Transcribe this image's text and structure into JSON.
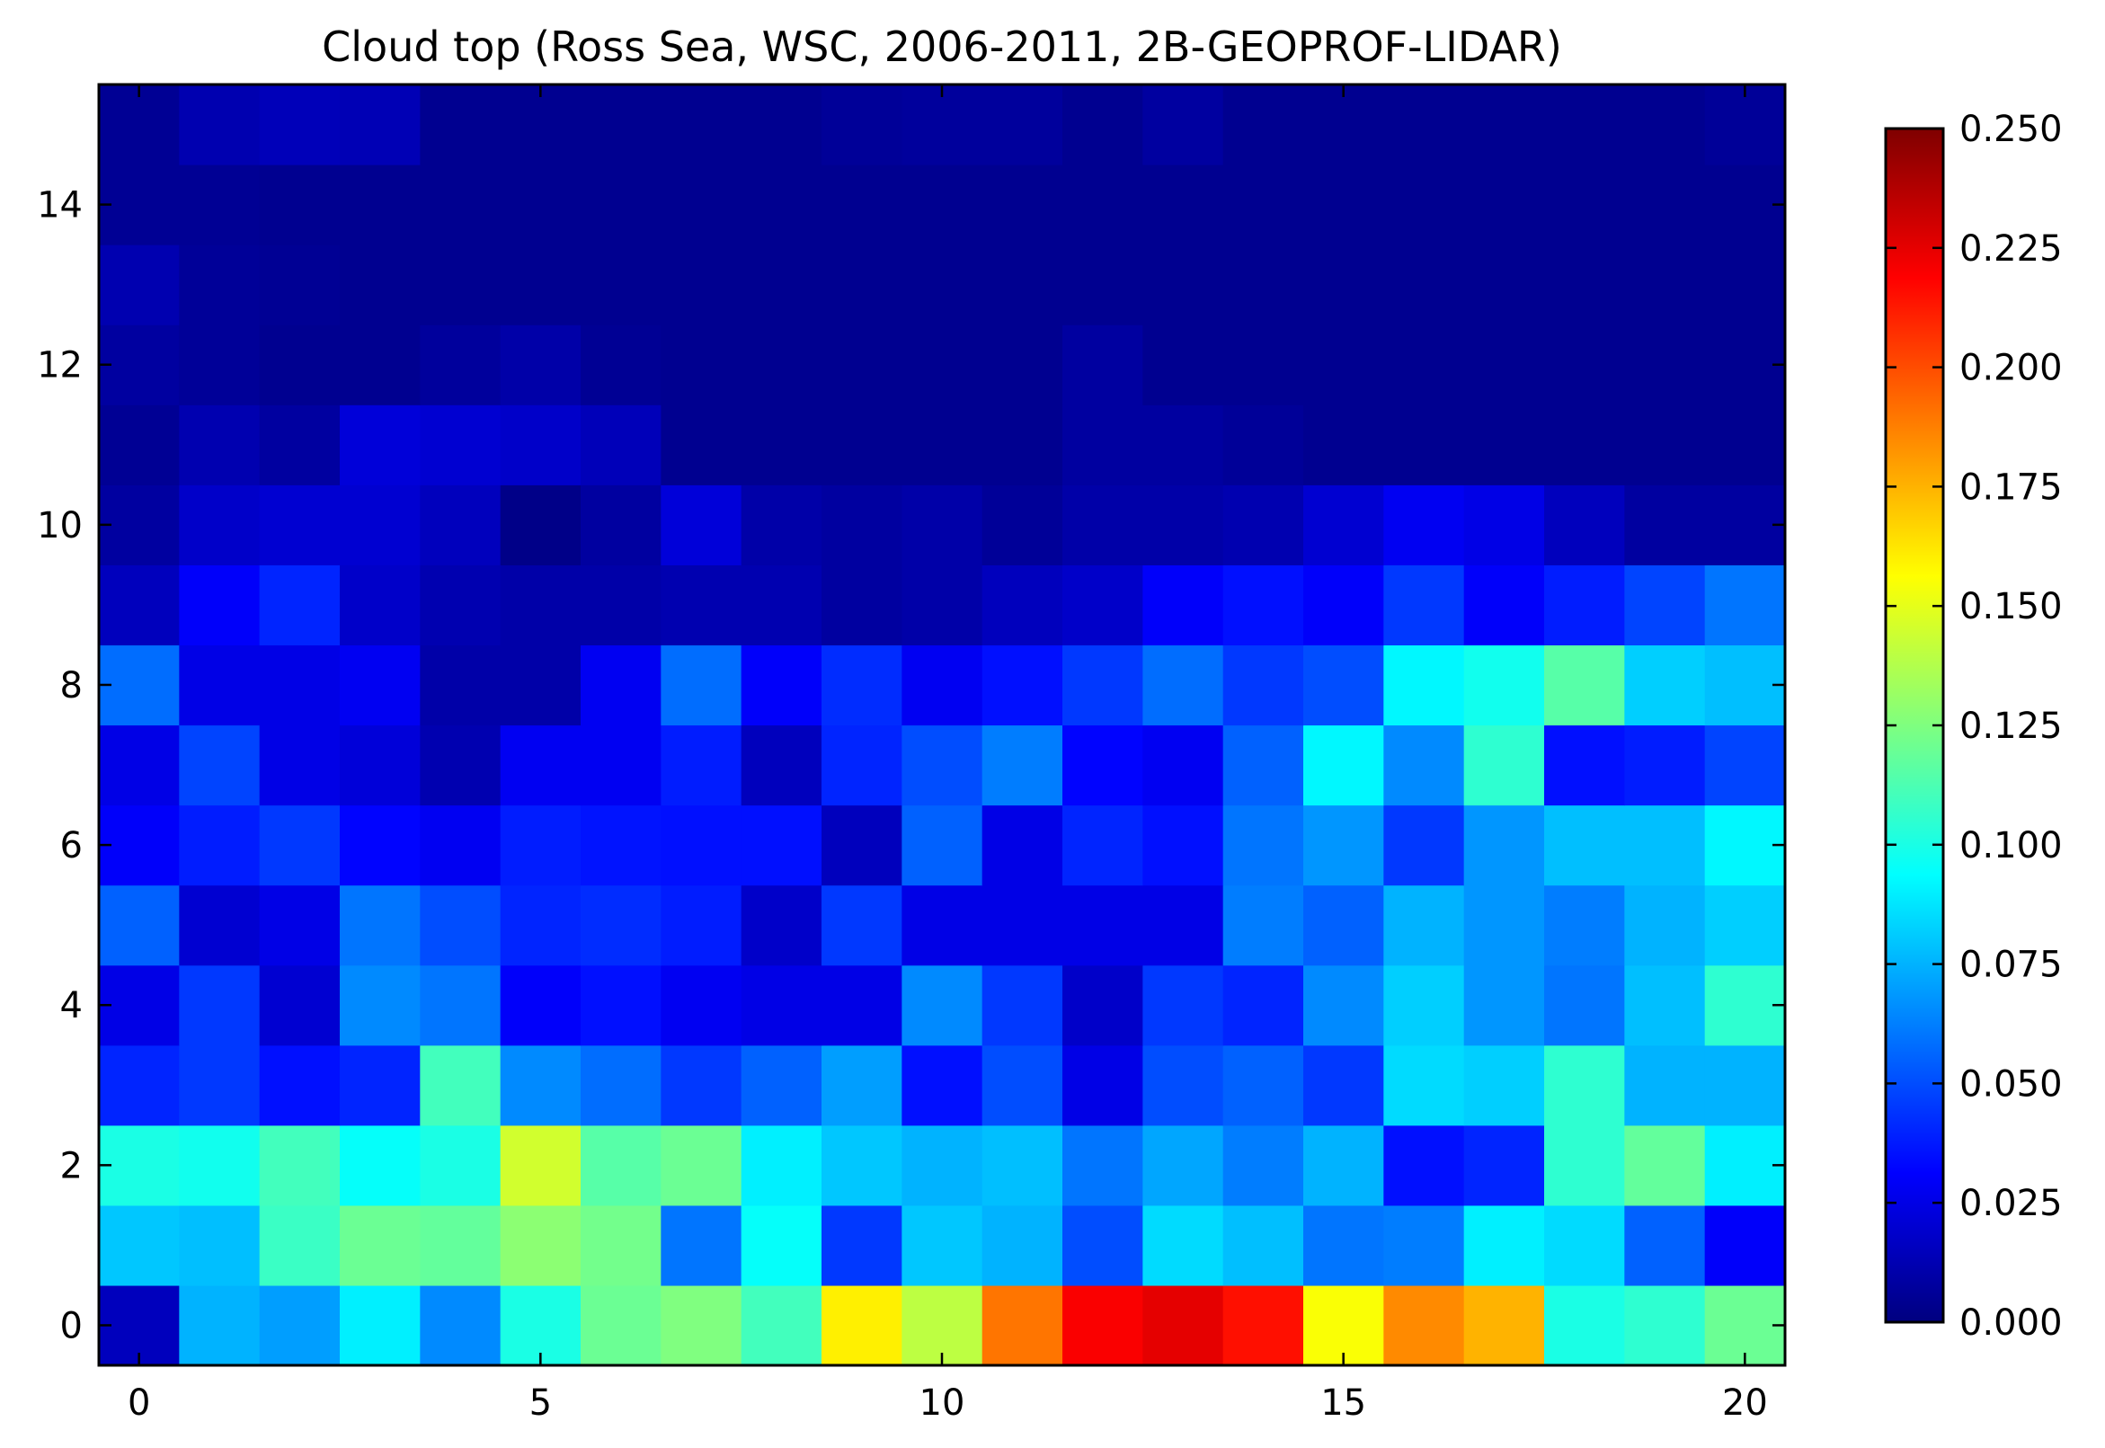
{
  "chart_data": {
    "type": "heatmap",
    "title": "Cloud top (Ross Sea, WSC, 2006-2011, 2B-GEOPROF-LIDAR)",
    "xlabel": "",
    "ylabel": "",
    "x_range": [
      -0.5,
      20.5
    ],
    "y_range": [
      -0.5,
      15.5
    ],
    "x_ticks": [
      0,
      5,
      10,
      15,
      20
    ],
    "y_ticks": [
      0,
      2,
      4,
      6,
      8,
      10,
      12,
      14
    ],
    "colorbar": {
      "colormap": "jet",
      "range": [
        0.0,
        0.25
      ],
      "ticks": [
        "0.000",
        "0.025",
        "0.050",
        "0.075",
        "0.100",
        "0.125",
        "0.150",
        "0.175",
        "0.200",
        "0.225",
        "0.250"
      ]
    },
    "x": [
      0,
      1,
      2,
      3,
      4,
      5,
      6,
      7,
      8,
      9,
      10,
      11,
      12,
      13,
      14,
      15,
      16,
      17,
      18,
      19,
      20
    ],
    "y": [
      0,
      1,
      2,
      3,
      4,
      5,
      6,
      7,
      8,
      9,
      10,
      11,
      12,
      13,
      14,
      15
    ],
    "values": [
      [
        0.015,
        0.075,
        0.07,
        0.09,
        0.065,
        0.1,
        0.12,
        0.125,
        0.11,
        0.16,
        0.14,
        0.19,
        0.22,
        0.225,
        0.215,
        0.155,
        0.185,
        0.175,
        0.1,
        0.105,
        0.12
      ],
      [
        0.08,
        0.078,
        0.108,
        0.12,
        0.118,
        0.128,
        0.122,
        0.06,
        0.095,
        0.045,
        0.08,
        0.075,
        0.05,
        0.085,
        0.078,
        0.06,
        0.062,
        0.09,
        0.085,
        0.055,
        0.03
      ],
      [
        0.1,
        0.098,
        0.11,
        0.095,
        0.1,
        0.145,
        0.115,
        0.12,
        0.09,
        0.08,
        0.075,
        0.078,
        0.06,
        0.072,
        0.062,
        0.075,
        0.035,
        0.04,
        0.105,
        0.118,
        0.09
      ],
      [
        0.04,
        0.045,
        0.035,
        0.04,
        0.11,
        0.065,
        0.058,
        0.045,
        0.055,
        0.07,
        0.035,
        0.05,
        0.025,
        0.05,
        0.055,
        0.045,
        0.085,
        0.082,
        0.105,
        0.075,
        0.075
      ],
      [
        0.025,
        0.045,
        0.02,
        0.065,
        0.06,
        0.03,
        0.035,
        0.028,
        0.025,
        0.025,
        0.065,
        0.045,
        0.018,
        0.045,
        0.04,
        0.065,
        0.082,
        0.068,
        0.06,
        0.078,
        0.105
      ],
      [
        0.055,
        0.02,
        0.025,
        0.06,
        0.05,
        0.04,
        0.042,
        0.038,
        0.018,
        0.045,
        0.025,
        0.025,
        0.025,
        0.025,
        0.062,
        0.055,
        0.075,
        0.068,
        0.062,
        0.075,
        0.082
      ],
      [
        0.03,
        0.038,
        0.045,
        0.032,
        0.028,
        0.038,
        0.036,
        0.035,
        0.035,
        0.015,
        0.055,
        0.025,
        0.04,
        0.035,
        0.06,
        0.068,
        0.045,
        0.068,
        0.078,
        0.078,
        0.092
      ],
      [
        0.025,
        0.048,
        0.025,
        0.022,
        0.012,
        0.028,
        0.028,
        0.038,
        0.015,
        0.04,
        0.05,
        0.062,
        0.032,
        0.028,
        0.055,
        0.092,
        0.065,
        0.105,
        0.035,
        0.038,
        0.048
      ],
      [
        0.058,
        0.025,
        0.025,
        0.028,
        0.01,
        0.01,
        0.028,
        0.058,
        0.03,
        0.042,
        0.028,
        0.035,
        0.045,
        0.058,
        0.045,
        0.05,
        0.092,
        0.098,
        0.115,
        0.082,
        0.078
      ],
      [
        0.015,
        0.03,
        0.04,
        0.018,
        0.012,
        0.01,
        0.01,
        0.012,
        0.012,
        0.008,
        0.01,
        0.015,
        0.018,
        0.03,
        0.035,
        0.03,
        0.045,
        0.03,
        0.038,
        0.048,
        0.06
      ],
      [
        0.008,
        0.018,
        0.02,
        0.02,
        0.015,
        0.002,
        0.008,
        0.022,
        0.01,
        0.008,
        0.01,
        0.006,
        0.01,
        0.01,
        0.012,
        0.02,
        0.028,
        0.025,
        0.015,
        0.008,
        0.008
      ],
      [
        0.005,
        0.012,
        0.008,
        0.022,
        0.02,
        0.018,
        0.014,
        0.004,
        0.004,
        0.004,
        0.004,
        0.004,
        0.008,
        0.008,
        0.006,
        0.004,
        0.004,
        0.004,
        0.004,
        0.004,
        0.004
      ],
      [
        0.008,
        0.006,
        0.004,
        0.004,
        0.007,
        0.01,
        0.005,
        0.004,
        0.004,
        0.004,
        0.004,
        0.004,
        0.008,
        0.004,
        0.004,
        0.004,
        0.004,
        0.004,
        0.004,
        0.004,
        0.004
      ],
      [
        0.012,
        0.006,
        0.005,
        0.004,
        0.004,
        0.004,
        0.004,
        0.004,
        0.004,
        0.004,
        0.004,
        0.004,
        0.004,
        0.004,
        0.004,
        0.004,
        0.004,
        0.004,
        0.004,
        0.004,
        0.004
      ],
      [
        0.005,
        0.005,
        0.004,
        0.004,
        0.004,
        0.004,
        0.004,
        0.004,
        0.004,
        0.004,
        0.004,
        0.004,
        0.004,
        0.004,
        0.004,
        0.004,
        0.004,
        0.004,
        0.004,
        0.004,
        0.004
      ],
      [
        0.005,
        0.012,
        0.014,
        0.013,
        0.004,
        0.004,
        0.004,
        0.004,
        0.004,
        0.006,
        0.007,
        0.007,
        0.004,
        0.008,
        0.004,
        0.004,
        0.004,
        0.004,
        0.004,
        0.004,
        0.006
      ]
    ]
  }
}
